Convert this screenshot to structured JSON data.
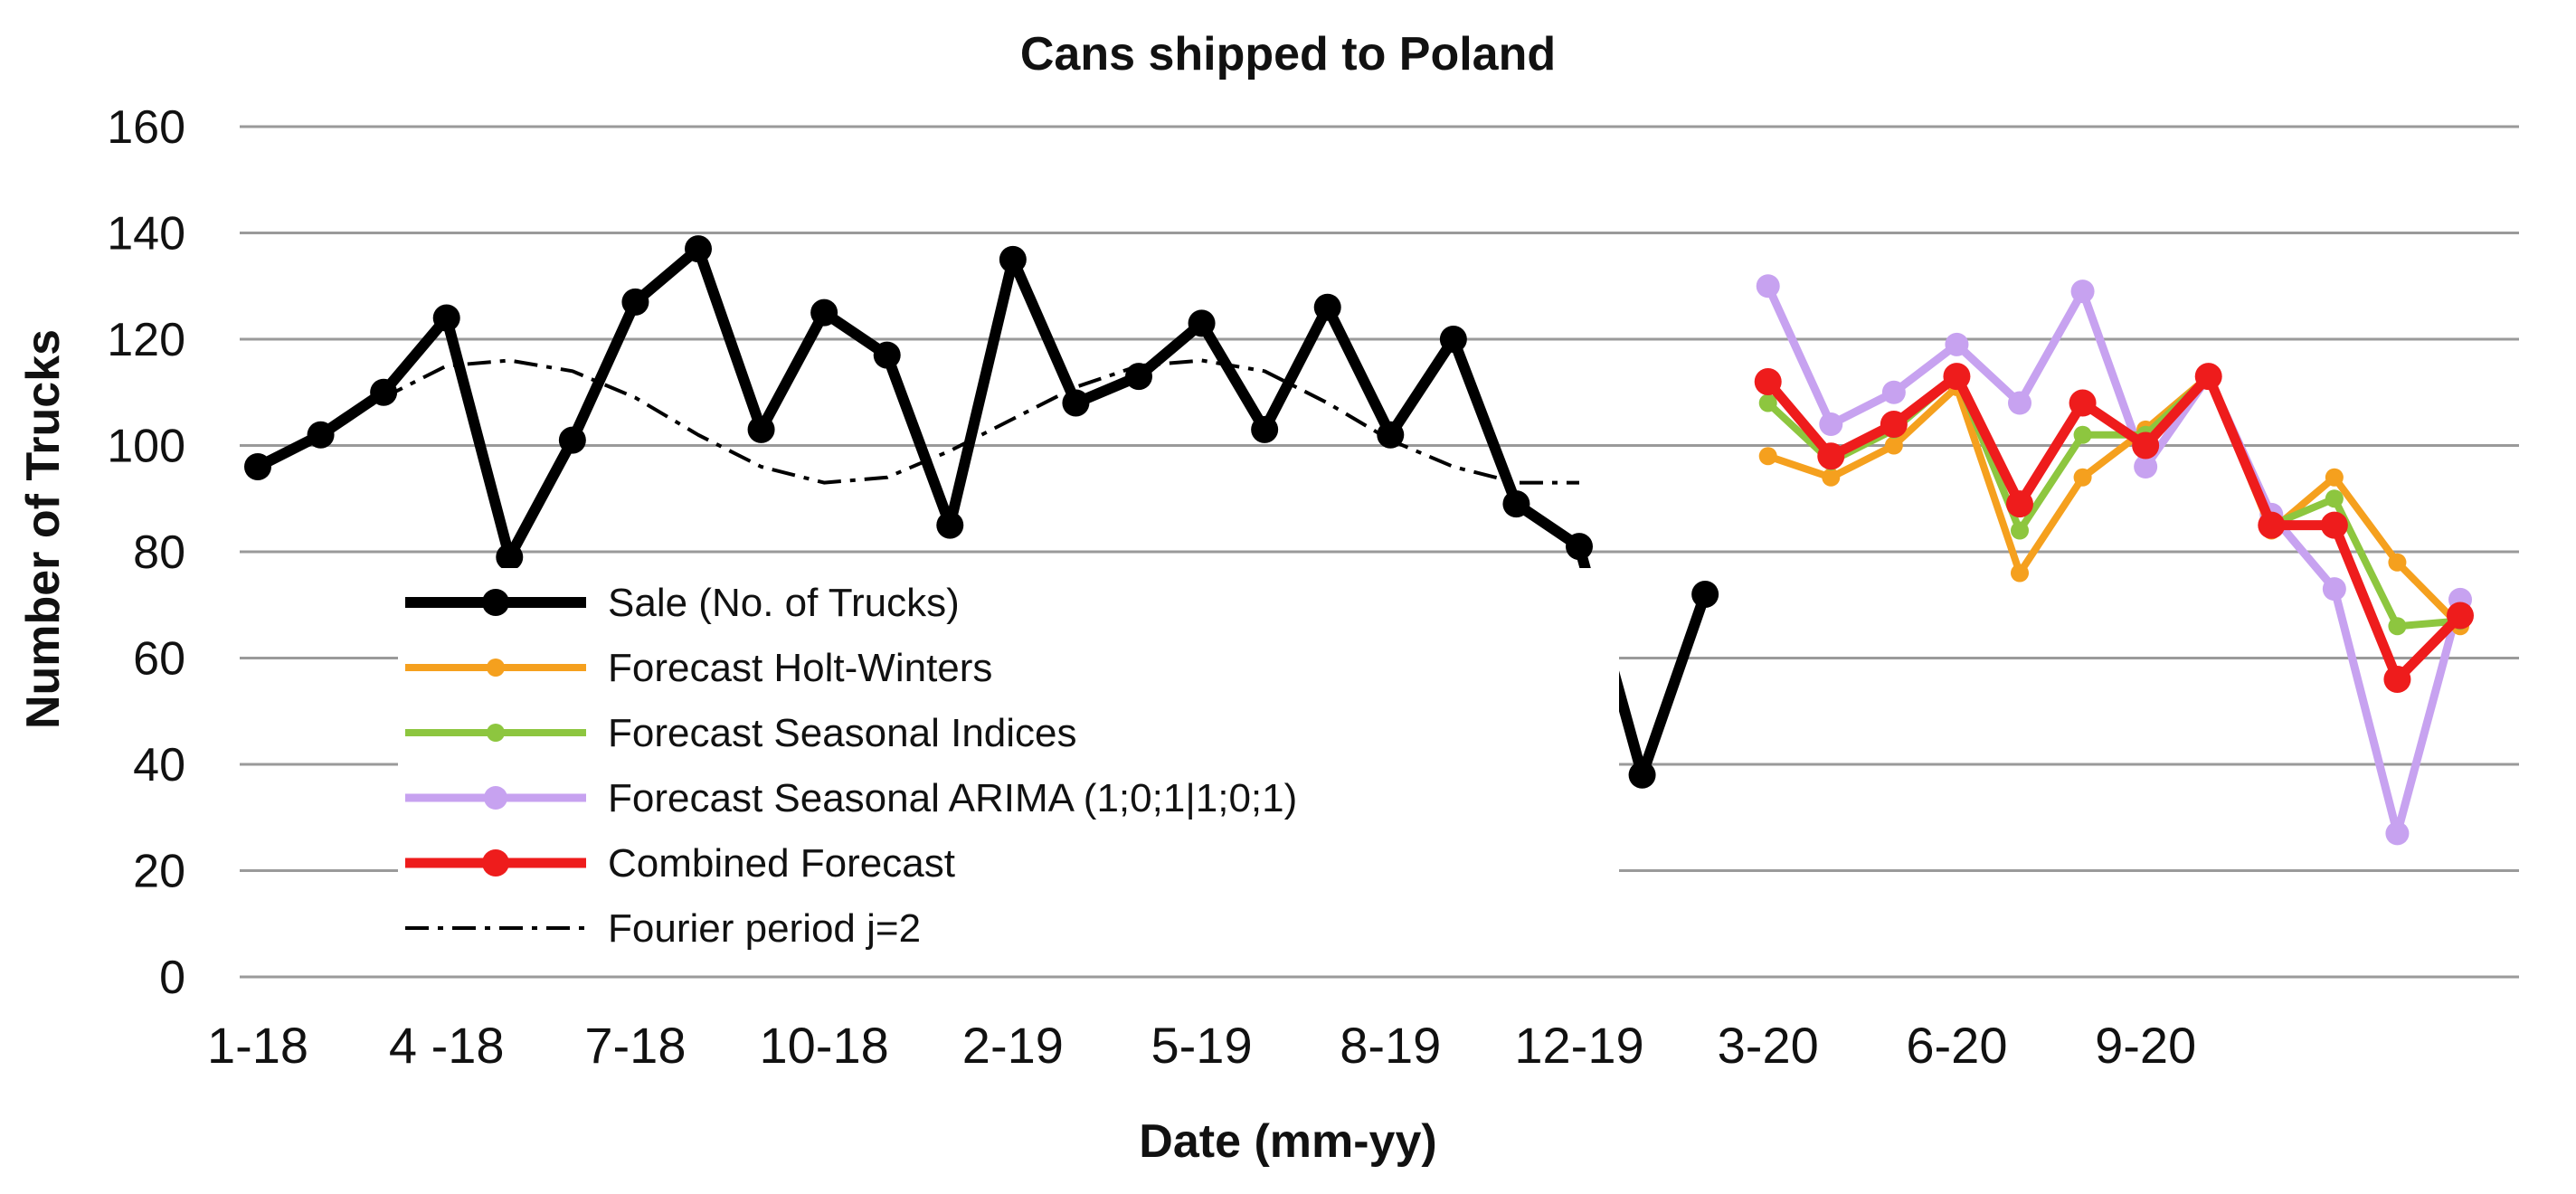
{
  "chart_data": {
    "type": "line",
    "title": "Cans shipped to Poland",
    "xlabel": "Date (mm-yy)",
    "ylabel": "Number of Trucks",
    "ylim": [
      0,
      160
    ],
    "yticks": [
      "0",
      "20",
      "40",
      "60",
      "80",
      "100",
      "120",
      "140",
      "160"
    ],
    "x_ticks": [
      "1-18",
      "4 -18",
      "7-18",
      "10-18",
      "2-19",
      "5-19",
      "8-19",
      "12-19",
      "3-20",
      "6-20",
      "9-20"
    ],
    "grid": true,
    "legend_position": "lower-left inside",
    "series": [
      {
        "name": "Sale (No. of Trucks)",
        "color": "#000000",
        "style": "solid-markers",
        "start_index": 0,
        "values": [
          96,
          102,
          110,
          124,
          79,
          101,
          127,
          137,
          103,
          125,
          117,
          85,
          135,
          108,
          113,
          123,
          103,
          126,
          102,
          120,
          89,
          81,
          38,
          72
        ]
      },
      {
        "name": "Forecast Holt-Winters",
        "color": "#f5a01e",
        "style": "solid-markers",
        "start_index": 24,
        "values": [
          98,
          94,
          100,
          111,
          76,
          94,
          103,
          113,
          84,
          94,
          78,
          66
        ]
      },
      {
        "name": "Forecast Seasonal Indices",
        "color": "#8dc63f",
        "style": "solid-markers",
        "start_index": 24,
        "values": [
          108,
          97,
          103,
          113,
          84,
          102,
          102,
          113,
          85,
          90,
          66,
          67
        ]
      },
      {
        "name": "Forecast Seasonal ARIMA (1;0;1|1;0;1)",
        "color": "#c7a2f0",
        "style": "solid-markers",
        "start_index": 24,
        "values": [
          130,
          104,
          110,
          119,
          108,
          129,
          96,
          113,
          87,
          73,
          27,
          71
        ]
      },
      {
        "name": "Combined Forecast",
        "color": "#ee1c1c",
        "style": "solid-markers",
        "start_index": 24,
        "values": [
          112,
          98,
          104,
          113,
          89,
          108,
          100,
          113,
          85,
          85,
          56,
          68
        ]
      },
      {
        "name": "Fourier period j=2",
        "color": "#000000",
        "style": "dash-dot",
        "start_index": 0,
        "values": [
          96,
          102,
          109,
          115,
          116,
          114,
          109,
          102,
          96,
          93,
          94,
          99,
          105,
          111,
          115,
          116,
          114,
          108,
          101,
          96,
          93,
          93
        ]
      }
    ]
  }
}
